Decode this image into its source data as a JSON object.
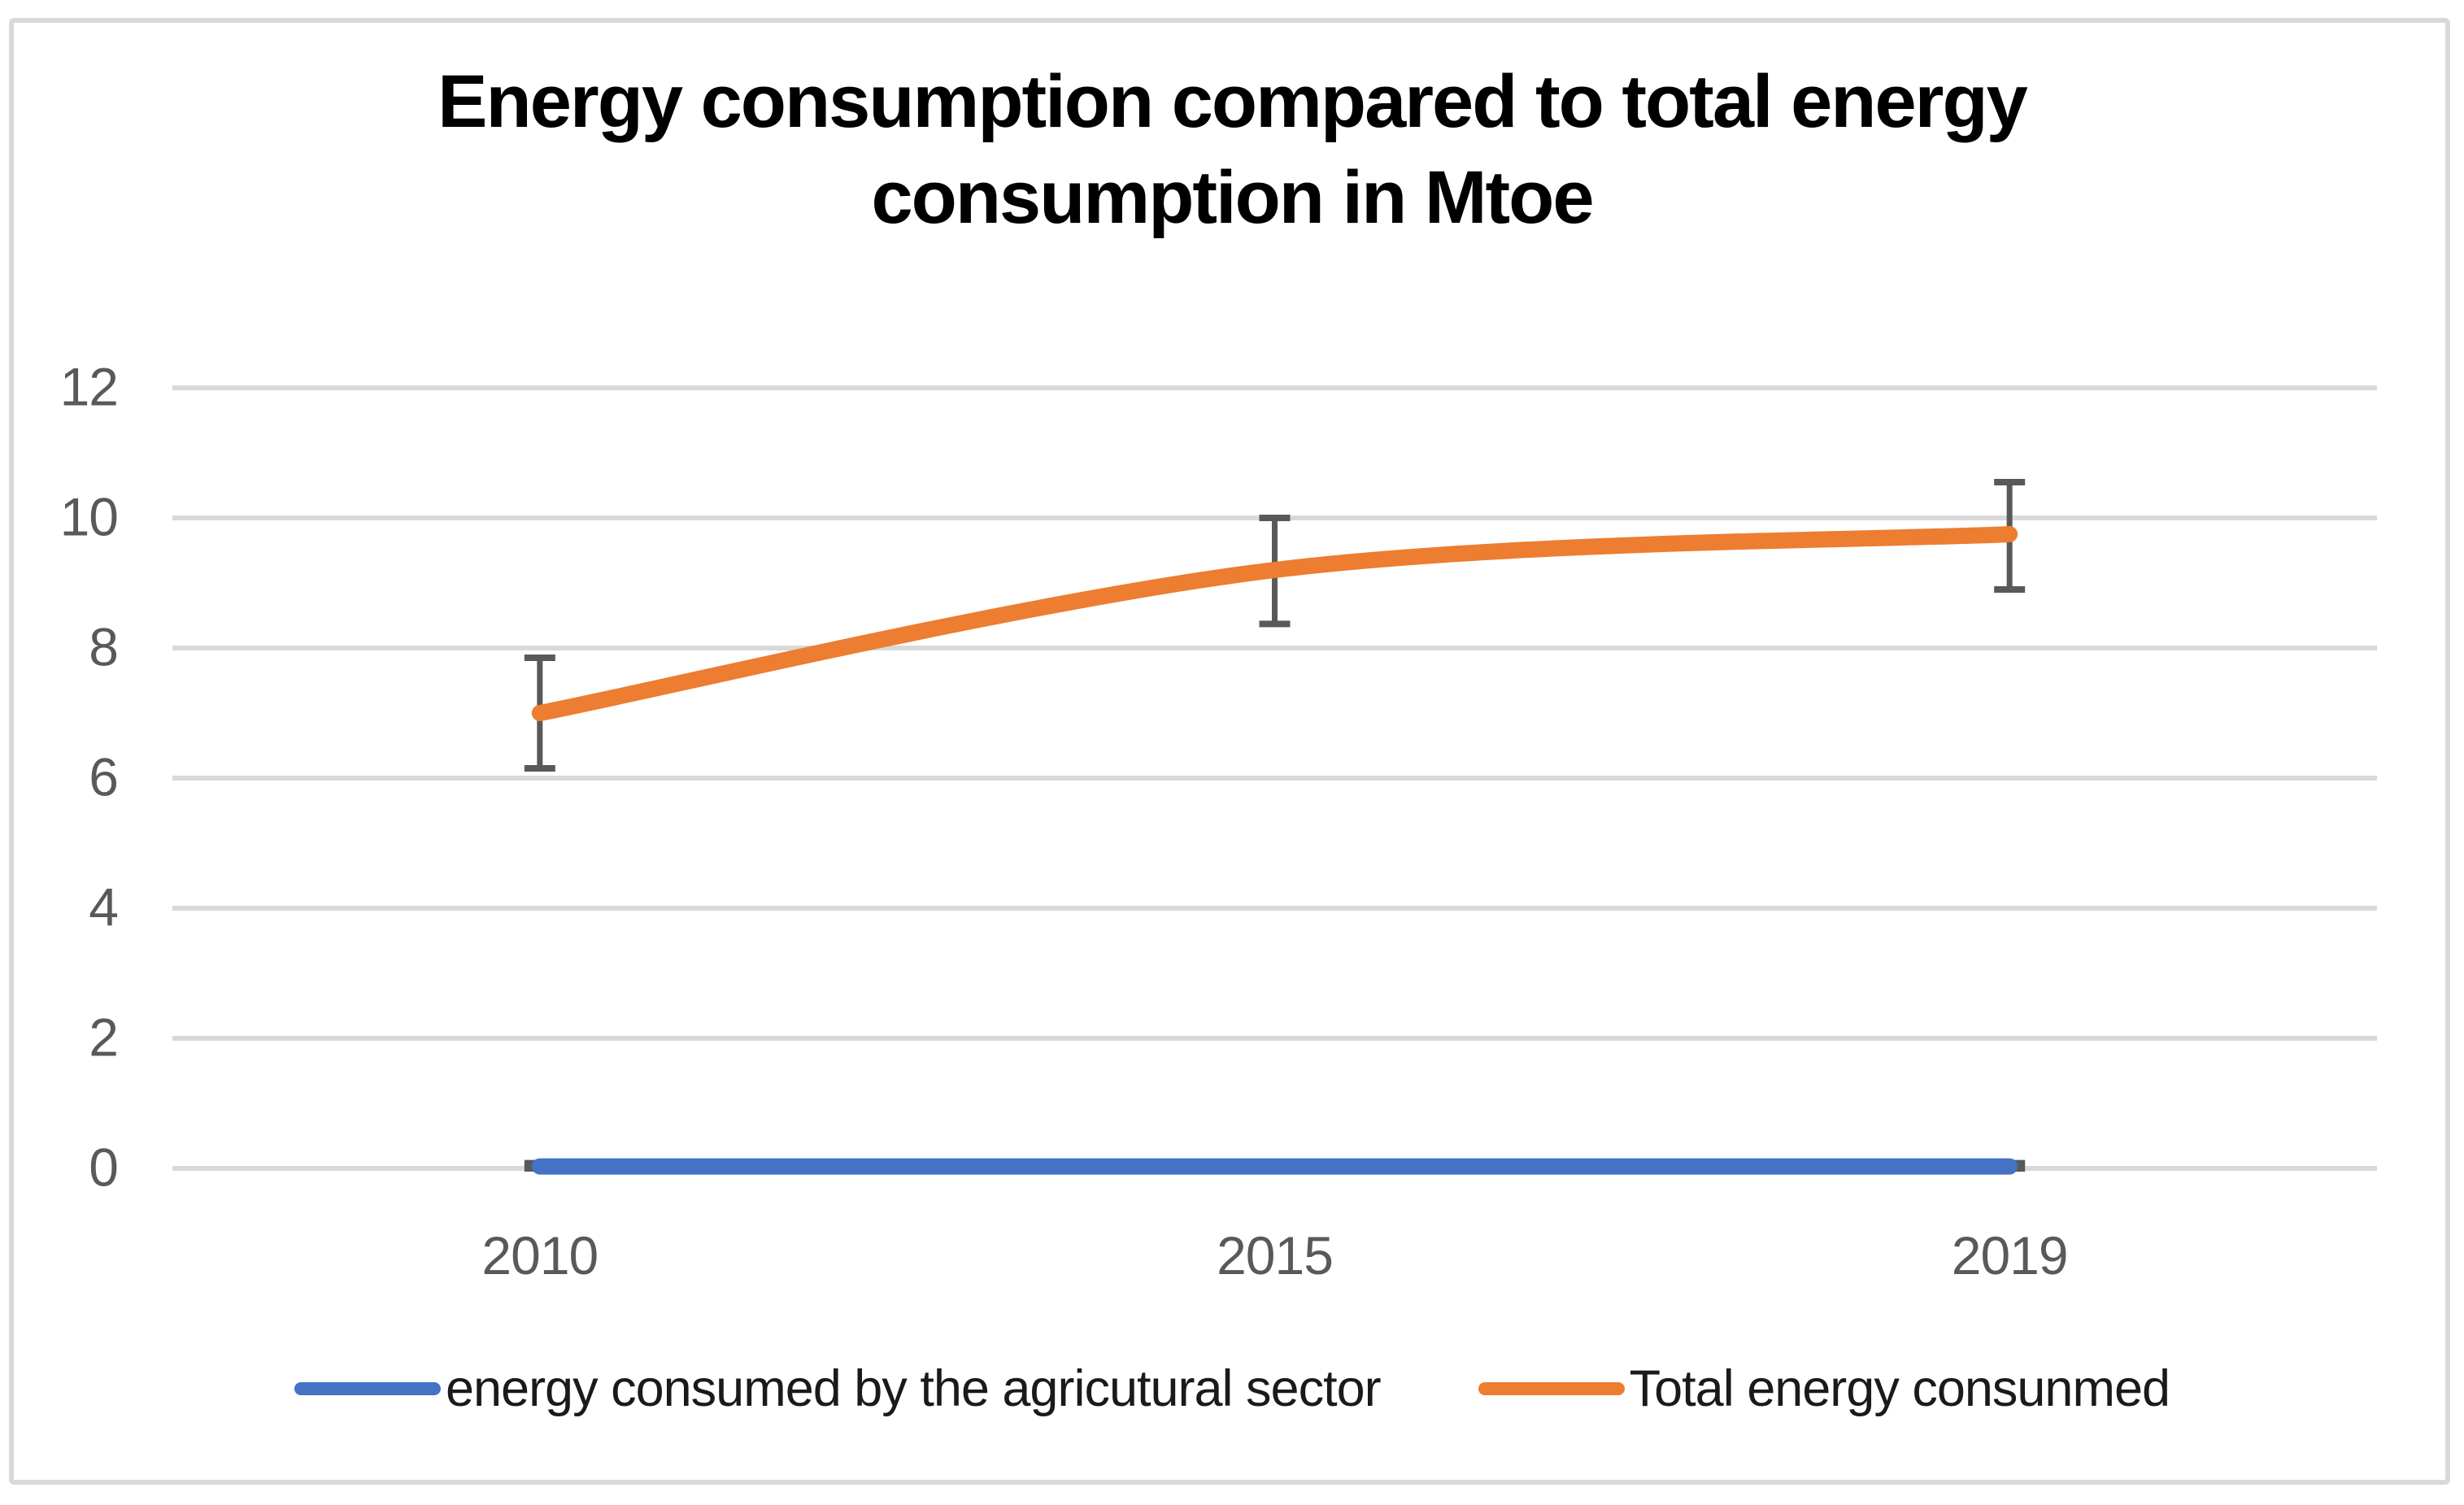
{
  "chart": {
    "title_lines": [
      "Energy consumption compared to total energy",
      "consumption in  Mtoe"
    ]
  },
  "chart_data": {
    "type": "line",
    "title": "Energy consumption compared to total energy consumption in  Mtoe",
    "categories": [
      "2010",
      "2015",
      "2019"
    ],
    "series": [
      {
        "name": "energy consumed by the agricutural sector",
        "color": "#4472C4",
        "values": [
          0.03,
          0.03,
          0.03
        ],
        "error_low": [
          0.0,
          0.0,
          0.0
        ],
        "error_high": [
          0.08,
          0.08,
          0.08
        ],
        "smooth": false
      },
      {
        "name": "Total energy consunmed",
        "color": "#ED7D31",
        "values": [
          7.0,
          9.2,
          9.75
        ],
        "error_low": [
          6.15,
          8.37,
          8.9
        ],
        "error_high": [
          7.85,
          10.0,
          10.55
        ],
        "smooth": true
      }
    ],
    "yticks": [
      0,
      2,
      4,
      6,
      8,
      10,
      12
    ],
    "ylim": [
      0,
      12
    ],
    "grid": true,
    "legend_position": "bottom",
    "gridline_color": "#D9D9D9",
    "error_bar_color": "#595959",
    "axis_label_color": "#595959"
  }
}
